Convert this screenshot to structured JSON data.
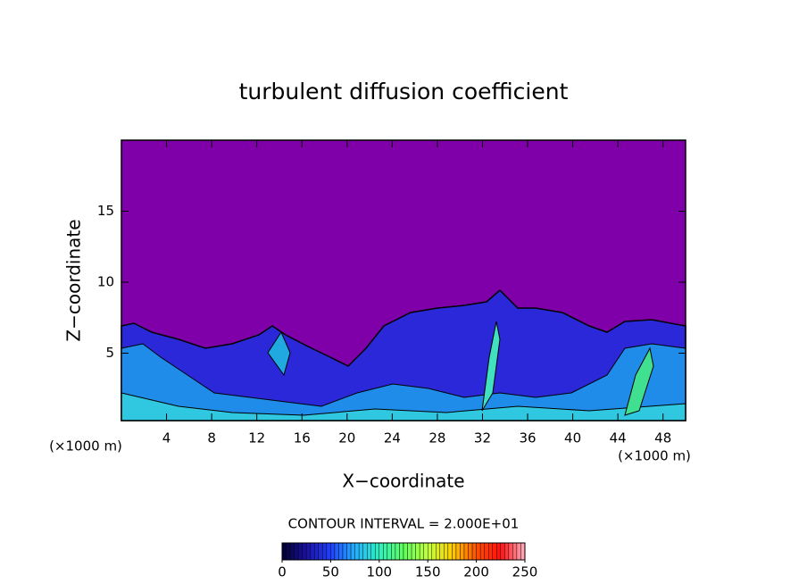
{
  "chart_data": {
    "type": "contour",
    "title": "turbulent diffusion coefficient",
    "xlabel": "X−coordinate",
    "ylabel": "Z−coordinate",
    "x_unit": "(×1000 m)",
    "y_unit": "(×1000 m)",
    "xlim": [
      0,
      50
    ],
    "xticks": [
      4,
      8,
      12,
      16,
      20,
      24,
      28,
      32,
      36,
      40,
      44,
      48
    ],
    "ylim": [
      0.25,
      20
    ],
    "yticks": [
      5,
      10,
      15
    ],
    "contour_interval_label": "CONTOUR INTERVAL = 2.000E+01",
    "colorbar_lim": [
      0,
      250
    ],
    "colorbar_ticks": [
      0,
      50,
      100,
      150,
      200,
      250
    ]
  }
}
